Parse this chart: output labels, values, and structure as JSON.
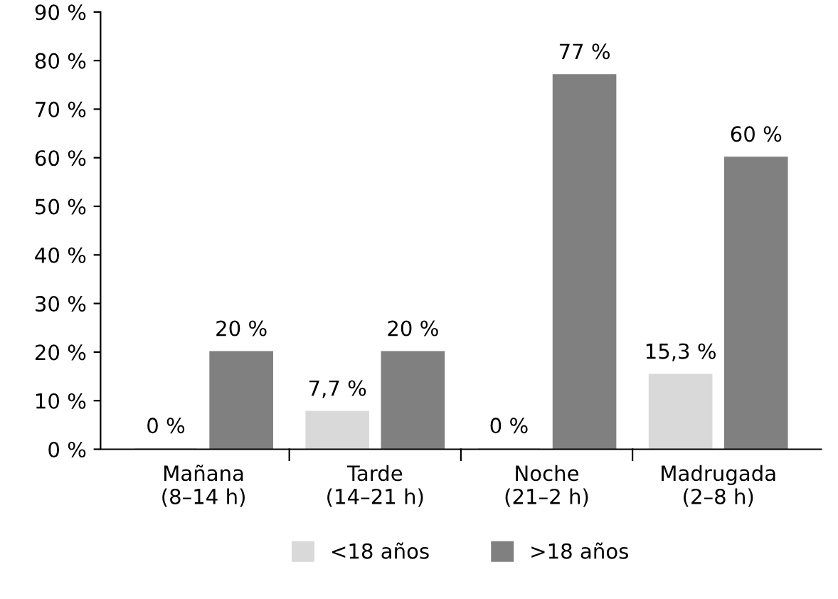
{
  "chart_data": {
    "type": "bar",
    "categories": [
      "Mañana\n(8–14 h)",
      "Tarde\n(14–21 h)",
      "Noche\n(21–2 h)",
      "Madrugada\n(2–8 h)"
    ],
    "series": [
      {
        "name": "<18 años",
        "color": "#d9d9d9",
        "values": [
          0,
          7.7,
          0,
          15.3
        ],
        "value_labels": [
          "0 %",
          "7,7 %",
          "0 %",
          "15,3 %"
        ]
      },
      {
        "name": ">18 años",
        "color": "#808080",
        "values": [
          20,
          20,
          77,
          60
        ],
        "value_labels": [
          "20 %",
          "20 %",
          "77 %",
          "60 %"
        ]
      }
    ],
    "ylim": [
      0,
      90
    ],
    "yticks": [
      {
        "value": 0,
        "label": "0 %"
      },
      {
        "value": 10,
        "label": "10 %"
      },
      {
        "value": 20,
        "label": "20 %"
      },
      {
        "value": 30,
        "label": "30 %"
      },
      {
        "value": 40,
        "label": "40 %"
      },
      {
        "value": 50,
        "label": "50 %"
      },
      {
        "value": 60,
        "label": "60 %"
      },
      {
        "value": 70,
        "label": "70 %"
      },
      {
        "value": 80,
        "label": "80 %"
      },
      {
        "value": 90,
        "label": "90 %"
      }
    ],
    "grid": false,
    "legend": "bottom"
  }
}
